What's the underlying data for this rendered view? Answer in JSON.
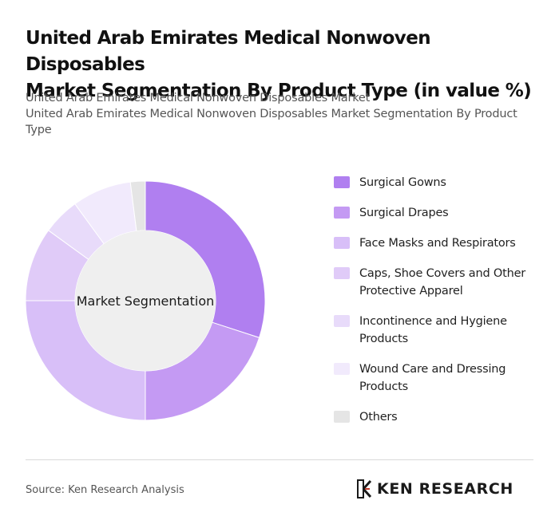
{
  "header": {
    "title_line1": "United Arab Emirates Medical Nonwoven Disposables",
    "title_line2": "Market Segmentation By Product Type (in value %)",
    "subtitle_line1": "United Arab Emirates Medical Nonwoven Disposables Market",
    "subtitle_line2": "United Arab Emirates Medical Nonwoven Disposables Market Segmentation By Product Type"
  },
  "chart_data": {
    "type": "pie",
    "center_label": "Market Segmentation",
    "unit": "%",
    "categories": [
      "Surgical Gowns",
      "Surgical Drapes",
      "Face Masks and Respirators",
      "Caps, Shoe Covers and Other Protective Apparel",
      "Incontinence and Hygiene Products",
      "Wound Care and Dressing Products",
      "Others"
    ],
    "values": [
      30,
      20,
      25,
      10,
      5,
      8,
      2
    ],
    "colors": [
      "#b07ff0",
      "#c49af3",
      "#d8bff8",
      "#e0cbf8",
      "#e8dbfa",
      "#f1eafc",
      "#e5e5e5"
    ],
    "legend_position": "right"
  },
  "footer": {
    "source": "Source: Ken Research Analysis",
    "logo_text": "KEN RESEARCH"
  }
}
